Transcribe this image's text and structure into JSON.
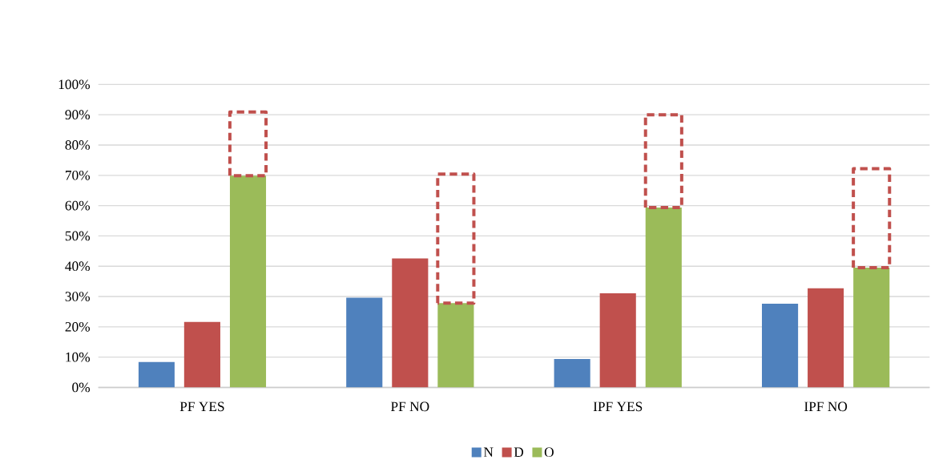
{
  "chart_data": {
    "type": "bar",
    "categories": [
      "PF YES",
      "PF NO",
      "IPF YES",
      "IPF NO"
    ],
    "series": [
      {
        "name": "N",
        "color": "#4f81bd",
        "values": [
          8.4,
          29.6,
          9.4,
          27.6
        ]
      },
      {
        "name": "D",
        "color": "#c0504d",
        "values": [
          21.6,
          42.6,
          31.1,
          32.7
        ]
      },
      {
        "name": "O",
        "color": "#9bbb59",
        "values": [
          69.9,
          27.8,
          59.4,
          39.5
        ]
      },
      {
        "color": "#c0504d",
        "line_style": "dashed",
        "base": [
          69.9,
          27.8,
          59.4,
          39.5
        ],
        "values": [
          21,
          42.6,
          30.6,
          32.7
        ]
      }
    ],
    "ylim": [
      0,
      100
    ],
    "yticks": [
      {
        "value": 0,
        "label": "0%"
      },
      {
        "value": 10,
        "label": "10%"
      },
      {
        "value": 20,
        "label": "20%"
      },
      {
        "value": 30,
        "label": "30%"
      },
      {
        "value": 40,
        "label": "40%"
      },
      {
        "value": 50,
        "label": "50%"
      },
      {
        "value": 60,
        "label": "60%"
      },
      {
        "value": 70,
        "label": "70%"
      },
      {
        "value": 80,
        "label": "80%"
      },
      {
        "value": 90,
        "label": "90%"
      },
      {
        "value": 100,
        "label": "100%"
      }
    ],
    "grid": "y",
    "legend": "bottom"
  }
}
